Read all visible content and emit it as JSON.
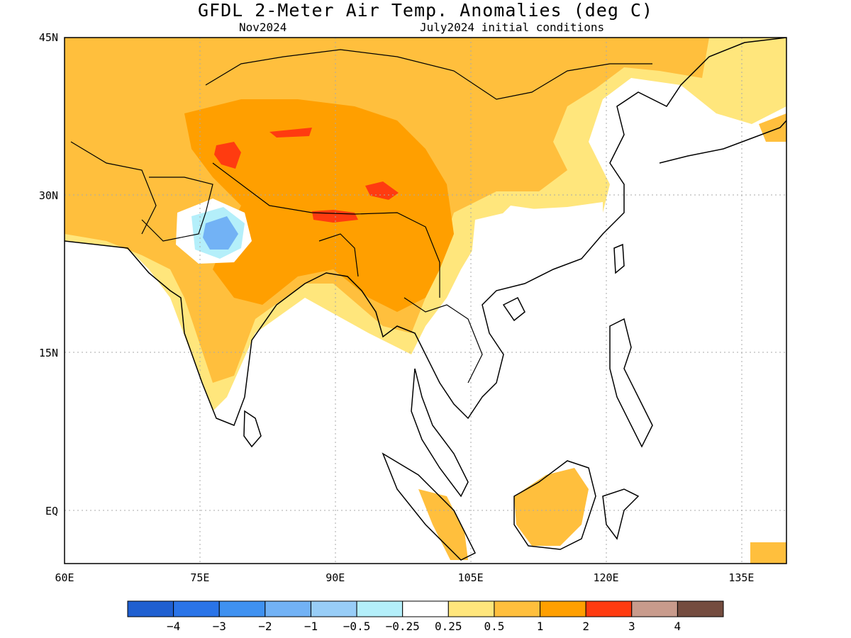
{
  "title": "GFDL 2-Meter Air Temp. Anomalies (deg C)",
  "subtitle_left": "Nov2024",
  "subtitle_right": "July2024 initial conditions",
  "map": {
    "lon_range": [
      60,
      140
    ],
    "lat_range": [
      -5,
      45
    ],
    "grid": "dotted",
    "y_ticks": [
      {
        "value": 45,
        "label": "45N"
      },
      {
        "value": 30,
        "label": "30N"
      },
      {
        "value": 15,
        "label": "15N"
      },
      {
        "value": 0,
        "label": "EQ"
      }
    ],
    "x_ticks": [
      {
        "value": 60,
        "label": "60E"
      },
      {
        "value": 75,
        "label": "75E"
      },
      {
        "value": 90,
        "label": "90E"
      },
      {
        "value": 105,
        "label": "105E"
      },
      {
        "value": 120,
        "label": "120E"
      },
      {
        "value": 135,
        "label": "135E"
      }
    ],
    "land_outline_color": "#000000"
  },
  "colorbar": {
    "colors": [
      "#1f5fd0",
      "#2a74e8",
      "#3f91f0",
      "#72b2f5",
      "#98cdf7",
      "#b4effa",
      "#ffffff",
      "#ffe67c",
      "#ffbf3d",
      "#ff9f00",
      "#ff3b10",
      "#c89b8c",
      "#744c3f"
    ],
    "labels": [
      "-4",
      "-3",
      "-2",
      "-1",
      "-0.5",
      "-0.25",
      "0.25",
      "0.5",
      "1",
      "2",
      "3",
      "4"
    ]
  }
}
